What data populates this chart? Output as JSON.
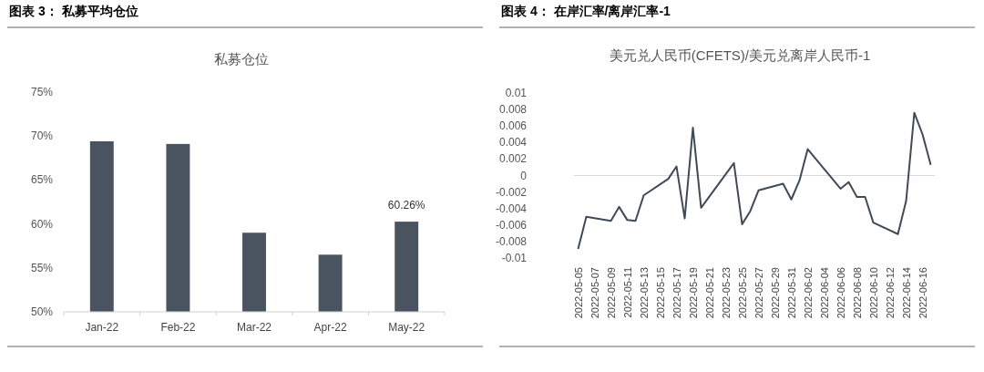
{
  "chart_data": [
    {
      "type": "bar",
      "title": "图表 3： 私募平均仓位",
      "subtitle": "私募仓位",
      "categories": [
        "Jan-22",
        "Feb-22",
        "Mar-22",
        "Apr-22",
        "May-22"
      ],
      "values": [
        69.4,
        69.1,
        59.0,
        56.5,
        60.26
      ],
      "value_labels": [
        null,
        null,
        null,
        null,
        "60.26%"
      ],
      "color": "#4a5461",
      "ylim": [
        50,
        75
      ],
      "yticks": [
        {
          "value": 50,
          "label": "50%"
        },
        {
          "value": 55,
          "label": "55%"
        },
        {
          "value": 60,
          "label": "60%"
        },
        {
          "value": 65,
          "label": "65%"
        },
        {
          "value": 70,
          "label": "70%"
        },
        {
          "value": 75,
          "label": "75%"
        }
      ]
    },
    {
      "type": "line",
      "title": "图表 4： 在岸汇率/离岸汇率-1",
      "subtitle": "美元兑人民币(CFETS)/美元兑离岸人民币-1",
      "x": [
        "2022-05-05",
        "2022-05-06",
        "2022-05-09",
        "2022-05-10",
        "2022-05-11",
        "2022-05-12",
        "2022-05-13",
        "2022-05-16",
        "2022-05-17",
        "2022-05-18",
        "2022-05-19",
        "2022-05-20",
        "2022-05-24",
        "2022-05-25",
        "2022-05-26",
        "2022-05-27",
        "2022-05-30",
        "2022-05-31",
        "2022-06-01",
        "2022-06-02",
        "2022-06-06",
        "2022-06-07",
        "2022-06-08",
        "2022-06-09",
        "2022-06-10",
        "2022-06-13",
        "2022-06-14",
        "2022-06-15",
        "2022-06-16",
        "2022-06-17"
      ],
      "values": [
        -0.0089,
        -0.005,
        -0.0055,
        -0.0038,
        -0.0054,
        -0.0055,
        -0.0024,
        -0.0004,
        0.0011,
        -0.0052,
        0.0058,
        -0.0039,
        0.0015,
        -0.0059,
        -0.0043,
        -0.0018,
        -0.001,
        -0.0029,
        -0.0006,
        0.0032,
        -0.0016,
        -0.0008,
        -0.0026,
        -0.0026,
        -0.0057,
        -0.0071,
        -0.0031,
        0.0076,
        0.005,
        0.0013
      ],
      "color": "#3f4a57",
      "xlim": [
        "2022-05-04T12:00",
        "2022-06-17T12:00"
      ],
      "xticks": [
        "2022-05-05",
        "2022-05-07",
        "2022-05-09",
        "2022-05-11",
        "2022-05-13",
        "2022-05-15",
        "2022-05-17",
        "2022-05-19",
        "2022-05-21",
        "2022-05-23",
        "2022-05-25",
        "2022-05-27",
        "2022-05-29",
        "2022-05-31",
        "2022-06-02",
        "2022-06-04",
        "2022-06-06",
        "2022-06-08",
        "2022-06-10",
        "2022-06-12",
        "2022-06-14",
        "2022-06-16"
      ],
      "ylim": [
        -0.01,
        0.01
      ],
      "yticks": [
        -0.01,
        -0.008,
        -0.006,
        -0.004,
        -0.002,
        0,
        0.002,
        0.004,
        0.006,
        0.008,
        0.01
      ]
    }
  ]
}
